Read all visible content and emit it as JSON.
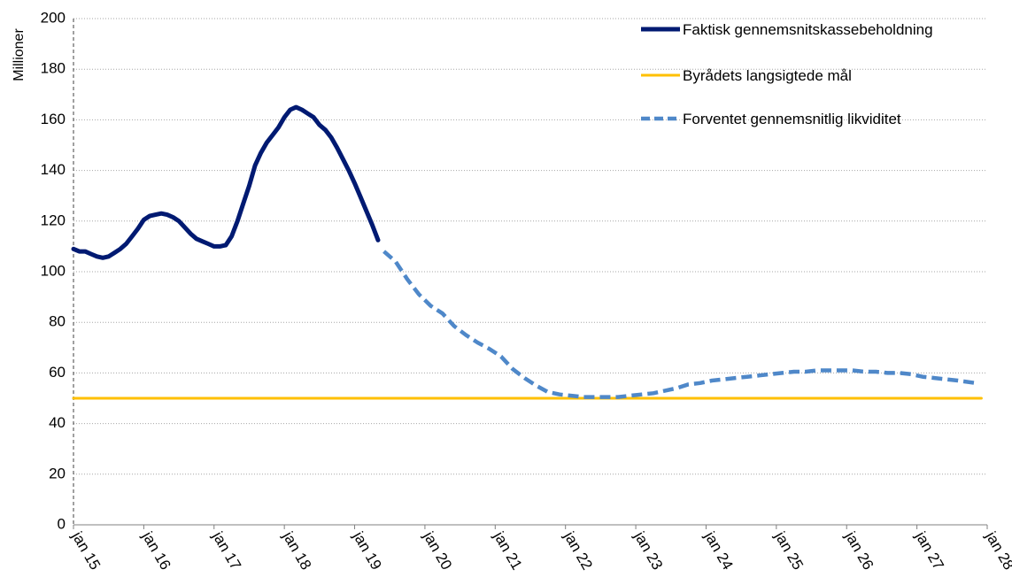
{
  "chart_data": {
    "type": "line",
    "title": "",
    "xlabel": "",
    "ylabel": "Millioner",
    "ylim": [
      0,
      200
    ],
    "yticks": [
      "0",
      "20",
      "40",
      "60",
      "80",
      "100",
      "120",
      "140",
      "160",
      "180",
      "200"
    ],
    "xticks": [
      "jan 15",
      "jan 16",
      "jan 17",
      "jan 18",
      "jan 19",
      "jan 20",
      "jan 21",
      "jan 22",
      "jan 23",
      "jan 24",
      "jan 25",
      "jan 26",
      "jan 27",
      "jan 28"
    ],
    "grid": true,
    "legend_position": "top-right",
    "series": [
      {
        "name": "Faktisk gennemsnitskassebeholdning",
        "color": "#001A72",
        "style": "solid",
        "points": [
          [
            "2015-01",
            109
          ],
          [
            "2015-02",
            108
          ],
          [
            "2015-03",
            108
          ],
          [
            "2015-04",
            107
          ],
          [
            "2015-05",
            106
          ],
          [
            "2015-06",
            105.5
          ],
          [
            "2015-07",
            106
          ],
          [
            "2015-08",
            107.5
          ],
          [
            "2015-09",
            109
          ],
          [
            "2015-10",
            111
          ],
          [
            "2015-11",
            114
          ],
          [
            "2015-12",
            117
          ],
          [
            "2016-01",
            120.5
          ],
          [
            "2016-02",
            122
          ],
          [
            "2016-03",
            122.5
          ],
          [
            "2016-04",
            123
          ],
          [
            "2016-05",
            122.5
          ],
          [
            "2016-06",
            121.5
          ],
          [
            "2016-07",
            120
          ],
          [
            "2016-08",
            117.5
          ],
          [
            "2016-09",
            115
          ],
          [
            "2016-10",
            113
          ],
          [
            "2016-11",
            112
          ],
          [
            "2016-12",
            111
          ],
          [
            "2017-01",
            110
          ],
          [
            "2017-02",
            110
          ],
          [
            "2017-03",
            110.5
          ],
          [
            "2017-04",
            114
          ],
          [
            "2017-05",
            120
          ],
          [
            "2017-06",
            127
          ],
          [
            "2017-07",
            134
          ],
          [
            "2017-08",
            142
          ],
          [
            "2017-09",
            147
          ],
          [
            "2017-10",
            151
          ],
          [
            "2017-11",
            154
          ],
          [
            "2017-12",
            157
          ],
          [
            "2018-01",
            161
          ],
          [
            "2018-02",
            164
          ],
          [
            "2018-03",
            165
          ],
          [
            "2018-04",
            164
          ],
          [
            "2018-05",
            162.5
          ],
          [
            "2018-06",
            161
          ],
          [
            "2018-07",
            158
          ],
          [
            "2018-08",
            156
          ],
          [
            "2018-09",
            153
          ],
          [
            "2018-10",
            149
          ],
          [
            "2018-11",
            144.5
          ],
          [
            "2018-12",
            140
          ],
          [
            "2019-01",
            135
          ],
          [
            "2019-02",
            129.5
          ],
          [
            "2019-03",
            124
          ],
          [
            "2019-04",
            118.5
          ],
          [
            "2019-05",
            112.5
          ]
        ]
      },
      {
        "name": "Byrådets langsigtede mål",
        "color": "#FFC000",
        "style": "solid",
        "points": [
          [
            "2015-01",
            50
          ],
          [
            "2027-12",
            50
          ]
        ]
      },
      {
        "name": "Forventet gennemsnitlig likviditet",
        "color": "#4F88C9",
        "style": "dashed",
        "points": [
          [
            "2019-06",
            108
          ],
          [
            "2019-08",
            104
          ],
          [
            "2019-10",
            97
          ],
          [
            "2019-12",
            91
          ],
          [
            "2020-02",
            86.5
          ],
          [
            "2020-04",
            83.5
          ],
          [
            "2020-06",
            78.5
          ],
          [
            "2020-08",
            75
          ],
          [
            "2020-10",
            72
          ],
          [
            "2020-12",
            69.5
          ],
          [
            "2021-02",
            66.5
          ],
          [
            "2021-04",
            61.5
          ],
          [
            "2021-06",
            58
          ],
          [
            "2021-08",
            55
          ],
          [
            "2021-10",
            52.5
          ],
          [
            "2021-12",
            51.5
          ],
          [
            "2022-02",
            51
          ],
          [
            "2022-04",
            50.5
          ],
          [
            "2022-06",
            50.5
          ],
          [
            "2022-08",
            50.5
          ],
          [
            "2022-10",
            50.5
          ],
          [
            "2022-12",
            51
          ],
          [
            "2023-02",
            51.5
          ],
          [
            "2023-04",
            52
          ],
          [
            "2023-06",
            53
          ],
          [
            "2023-08",
            54
          ],
          [
            "2023-10",
            55.5
          ],
          [
            "2023-12",
            56
          ],
          [
            "2024-02",
            57
          ],
          [
            "2024-04",
            57.5
          ],
          [
            "2024-06",
            58
          ],
          [
            "2024-08",
            58.5
          ],
          [
            "2024-10",
            59
          ],
          [
            "2024-12",
            59.5
          ],
          [
            "2025-02",
            60
          ],
          [
            "2025-04",
            60.5
          ],
          [
            "2025-06",
            60.5
          ],
          [
            "2025-08",
            61
          ],
          [
            "2025-10",
            61
          ],
          [
            "2025-12",
            61
          ],
          [
            "2026-02",
            61
          ],
          [
            "2026-04",
            60.5
          ],
          [
            "2026-06",
            60.5
          ],
          [
            "2026-08",
            60
          ],
          [
            "2026-10",
            60
          ],
          [
            "2026-12",
            59.5
          ],
          [
            "2027-02",
            58.5
          ],
          [
            "2027-04",
            58
          ],
          [
            "2027-06",
            57.5
          ],
          [
            "2027-08",
            57
          ],
          [
            "2027-11",
            56
          ]
        ]
      }
    ]
  }
}
